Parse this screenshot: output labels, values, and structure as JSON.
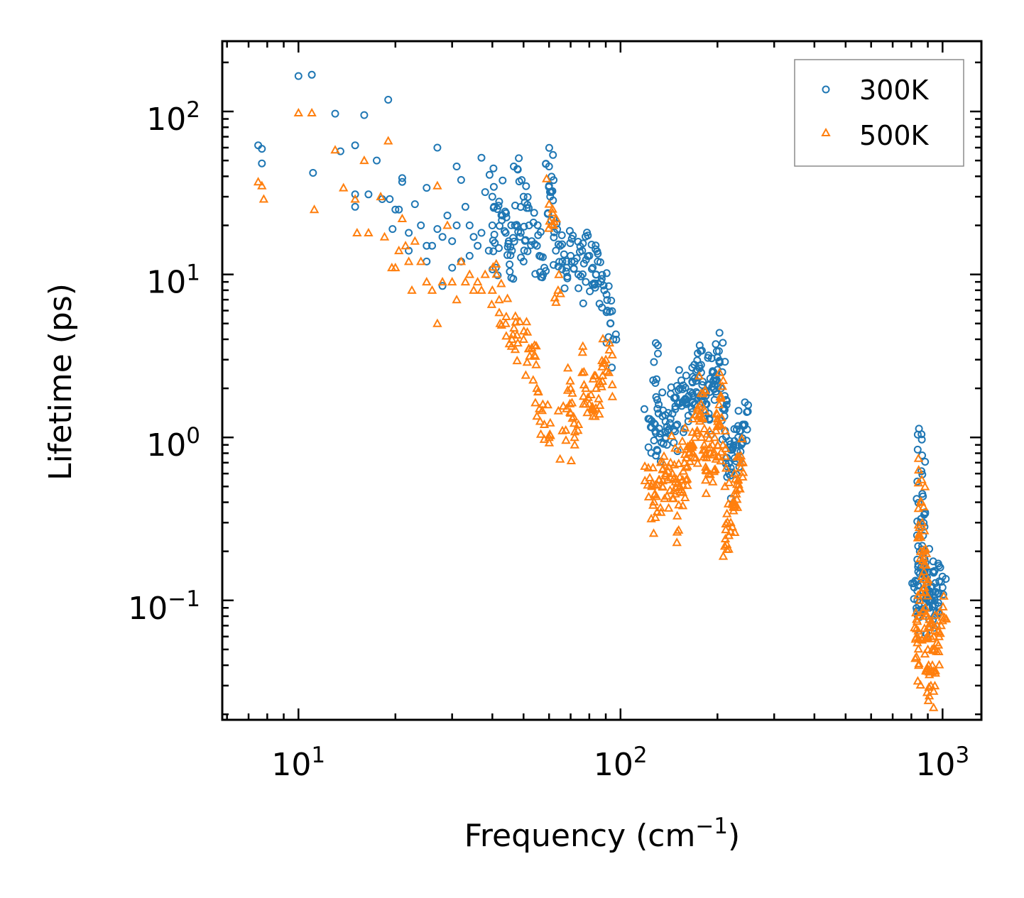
{
  "chart_data": {
    "type": "scatter",
    "xscale": "log",
    "yscale": "log",
    "xlim": [
      5.8,
      1320
    ],
    "ylim": [
      0.0185,
      270
    ],
    "xlabel": {
      "text": "Frequency (cm",
      "sup": "−1",
      "suffix": ")"
    },
    "ylabel": "Lifetime (ps)",
    "x_ticks": [
      {
        "value": 10,
        "base": "10",
        "exp": "1"
      },
      {
        "value": 100,
        "base": "10",
        "exp": "2"
      },
      {
        "value": 1000,
        "base": "10",
        "exp": "3"
      }
    ],
    "y_ticks": [
      {
        "value": 0.1,
        "base": "10",
        "exp": "−1"
      },
      {
        "value": 1,
        "base": "10",
        "exp": "0"
      },
      {
        "value": 10,
        "base": "10",
        "exp": "1"
      },
      {
        "value": 100,
        "base": "10",
        "exp": "2"
      }
    ],
    "legend": {
      "position": "top-right"
    },
    "series": [
      {
        "name": "300K",
        "marker": "circle",
        "color": "#1f77b4",
        "points": [
          [
            7.5,
            62
          ],
          [
            7.7,
            59
          ],
          [
            7.7,
            48
          ],
          [
            10,
            165
          ],
          [
            11,
            168
          ],
          [
            11.1,
            42
          ],
          [
            13,
            97
          ],
          [
            13.5,
            57
          ],
          [
            15,
            62
          ],
          [
            15,
            31
          ],
          [
            15,
            26
          ],
          [
            16,
            95
          ],
          [
            16.5,
            31
          ],
          [
            17.5,
            50
          ],
          [
            18.2,
            29
          ],
          [
            19,
            118
          ],
          [
            19.2,
            29
          ],
          [
            19.6,
            19
          ],
          [
            20,
            25
          ],
          [
            20.5,
            25
          ],
          [
            21,
            37
          ],
          [
            21,
            39
          ],
          [
            22,
            18
          ],
          [
            22,
            14
          ],
          [
            23,
            27
          ],
          [
            24,
            20
          ],
          [
            25,
            12
          ],
          [
            25,
            15
          ],
          [
            25,
            34
          ],
          [
            26,
            15
          ],
          [
            27,
            60
          ],
          [
            27,
            19
          ],
          [
            28,
            8.5
          ],
          [
            28,
            17
          ],
          [
            29,
            23
          ],
          [
            30,
            16
          ],
          [
            30,
            11
          ],
          [
            31,
            46
          ],
          [
            31,
            20
          ],
          [
            32,
            38
          ],
          [
            32,
            12
          ],
          [
            33,
            26
          ],
          [
            34,
            20
          ],
          [
            34,
            13
          ],
          [
            35,
            17
          ],
          [
            36,
            15
          ],
          [
            37,
            52
          ],
          [
            37,
            18
          ],
          [
            38,
            32
          ],
          [
            39,
            14
          ],
          [
            40,
            30
          ],
          [
            40,
            20
          ],
          [
            41,
            11
          ],
          [
            42,
            28
          ],
          [
            43,
            23
          ],
          [
            44,
            18
          ],
          [
            45,
            16
          ],
          [
            46,
            14
          ],
          [
            47,
            20
          ],
          [
            48,
            44
          ],
          [
            49,
            18
          ],
          [
            50,
            30
          ],
          [
            50,
            12
          ],
          [
            52,
            20
          ],
          [
            53,
            16
          ],
          [
            55,
            15
          ],
          [
            56,
            13
          ],
          [
            58,
            11
          ],
          [
            60,
            46
          ],
          [
            60,
            35
          ],
          [
            61,
            32
          ],
          [
            62,
            22
          ],
          [
            63,
            14
          ],
          [
            65,
            15
          ],
          [
            66,
            12
          ],
          [
            68,
            11
          ],
          [
            70,
            13
          ],
          [
            72,
            12
          ],
          [
            74,
            10
          ],
          [
            76,
            14
          ],
          [
            78,
            9
          ],
          [
            80,
            13
          ],
          [
            82,
            11
          ],
          [
            84,
            10
          ],
          [
            85,
            12
          ],
          [
            87,
            9
          ],
          [
            89,
            8
          ],
          [
            91,
            6
          ],
          [
            93,
            5
          ],
          [
            95,
            4
          ],
          [
            127,
            2.9
          ],
          [
            122,
            1.3
          ],
          [
            125,
            1.15
          ],
          [
            128,
            1.2
          ],
          [
            130,
            1.7
          ],
          [
            132,
            1.0
          ],
          [
            135,
            1.35
          ],
          [
            138,
            1.25
          ],
          [
            140,
            1.1
          ],
          [
            143,
            1.3
          ],
          [
            145,
            1.4
          ],
          [
            148,
            1.55
          ],
          [
            150,
            1.2
          ],
          [
            153,
            2.0
          ],
          [
            156,
            1.65
          ],
          [
            158,
            1.7
          ],
          [
            160,
            1.6
          ],
          [
            163,
            1.8
          ],
          [
            165,
            1.9
          ],
          [
            167,
            2.2
          ],
          [
            170,
            2.3
          ],
          [
            173,
            2.6
          ],
          [
            176,
            2.65
          ],
          [
            178,
            2.5
          ],
          [
            180,
            2.2
          ],
          [
            182,
            1.9
          ],
          [
            185,
            1.6
          ],
          [
            188,
            1.4
          ],
          [
            190,
            2.3
          ],
          [
            193,
            2.5
          ],
          [
            196,
            2.3
          ],
          [
            198,
            2.4
          ],
          [
            200,
            2.6
          ],
          [
            203,
            2.95
          ],
          [
            205,
            2.0
          ],
          [
            208,
            1.5
          ],
          [
            211,
            1.1
          ],
          [
            214,
            0.75
          ],
          [
            217,
            0.6
          ],
          [
            220,
            0.65
          ],
          [
            223,
            0.85
          ],
          [
            226,
            0.95
          ],
          [
            229,
            0.9
          ],
          [
            232,
            1.0
          ],
          [
            236,
            1.1
          ],
          [
            240,
            1.2
          ],
          [
            243,
            1.2
          ],
          [
            830,
            0.13
          ],
          [
            835,
            0.1
          ],
          [
            840,
            0.15
          ],
          [
            845,
            0.08
          ],
          [
            850,
            0.2
          ],
          [
            855,
            0.3
          ],
          [
            860,
            0.62
          ],
          [
            862,
            0.97
          ],
          [
            865,
            0.45
          ],
          [
            870,
            0.25
          ],
          [
            875,
            0.2
          ],
          [
            880,
            0.15
          ],
          [
            885,
            0.17
          ],
          [
            890,
            0.13
          ],
          [
            895,
            0.11
          ],
          [
            900,
            0.15
          ],
          [
            905,
            0.1
          ],
          [
            910,
            0.09
          ],
          [
            920,
            0.12
          ],
          [
            930,
            0.1
          ],
          [
            945,
            0.1
          ],
          [
            960,
            0.12
          ],
          [
            975,
            0.11
          ],
          [
            990,
            0.13
          ],
          [
            1000,
            0.12
          ]
        ]
      },
      {
        "name": "500K",
        "marker": "triangle",
        "color": "#ff7f0e",
        "points": [
          [
            7.5,
            37
          ],
          [
            7.7,
            35
          ],
          [
            7.8,
            29
          ],
          [
            10,
            98
          ],
          [
            11,
            98
          ],
          [
            11.2,
            25
          ],
          [
            13,
            58
          ],
          [
            13.8,
            34
          ],
          [
            15,
            29
          ],
          [
            15.2,
            18
          ],
          [
            16,
            50
          ],
          [
            16.5,
            18
          ],
          [
            18,
            30
          ],
          [
            18.5,
            17
          ],
          [
            19,
            66
          ],
          [
            19.5,
            11
          ],
          [
            20,
            11
          ],
          [
            20.5,
            14
          ],
          [
            21,
            22
          ],
          [
            21.5,
            15
          ],
          [
            22,
            12
          ],
          [
            22.5,
            8
          ],
          [
            23,
            16
          ],
          [
            24,
            12
          ],
          [
            25,
            9
          ],
          [
            26,
            8
          ],
          [
            27,
            35
          ],
          [
            27,
            5
          ],
          [
            28,
            9
          ],
          [
            29,
            20
          ],
          [
            30,
            9
          ],
          [
            31,
            7
          ],
          [
            32,
            12
          ],
          [
            33,
            9
          ],
          [
            34,
            10
          ],
          [
            35,
            8
          ],
          [
            36,
            9
          ],
          [
            37,
            8
          ],
          [
            38,
            10
          ],
          [
            40,
            8
          ],
          [
            42,
            7
          ],
          [
            44,
            5
          ],
          [
            46,
            4
          ],
          [
            48,
            3.8
          ],
          [
            50,
            4
          ],
          [
            52,
            3.5
          ],
          [
            54,
            3.2
          ],
          [
            55,
            2
          ],
          [
            56,
            1.5
          ],
          [
            58,
            1.2
          ],
          [
            60,
            1.0
          ],
          [
            60,
            27
          ],
          [
            62,
            20
          ],
          [
            64,
            8
          ],
          [
            66,
            1.1
          ],
          [
            68,
            1.5
          ],
          [
            70,
            2
          ],
          [
            72,
            1
          ],
          [
            74,
            1.2
          ],
          [
            76,
            2.5
          ],
          [
            78,
            2
          ],
          [
            80,
            1.6
          ],
          [
            82,
            1.5
          ],
          [
            84,
            2
          ],
          [
            86,
            2.2
          ],
          [
            88,
            2.4
          ],
          [
            90,
            3
          ],
          [
            92,
            2.5
          ],
          [
            122,
            0.65
          ],
          [
            125,
            0.5
          ],
          [
            128,
            0.45
          ],
          [
            130,
            0.35
          ],
          [
            132,
            0.55
          ],
          [
            135,
            0.5
          ],
          [
            138,
            0.6
          ],
          [
            140,
            0.55
          ],
          [
            143,
            0.7
          ],
          [
            145,
            0.6
          ],
          [
            148,
            0.45
          ],
          [
            150,
            0.33
          ],
          [
            153,
            0.5
          ],
          [
            156,
            0.55
          ],
          [
            158,
            0.7
          ],
          [
            160,
            0.75
          ],
          [
            163,
            0.8
          ],
          [
            165,
            0.85
          ],
          [
            168,
            0.9
          ],
          [
            170,
            1.0
          ],
          [
            173,
            1.1
          ],
          [
            176,
            1.4
          ],
          [
            178,
            1.6
          ],
          [
            180,
            1.3
          ],
          [
            182,
            0.9
          ],
          [
            185,
            0.75
          ],
          [
            188,
            0.6
          ],
          [
            190,
            0.8
          ],
          [
            193,
            0.9
          ],
          [
            196,
            1.0
          ],
          [
            198,
            1.1
          ],
          [
            200,
            1.3
          ],
          [
            203,
            1.2
          ],
          [
            205,
            1.8
          ],
          [
            208,
            0.9
          ],
          [
            211,
            0.5
          ],
          [
            214,
            0.22
          ],
          [
            217,
            0.25
          ],
          [
            220,
            0.3
          ],
          [
            223,
            0.4
          ],
          [
            226,
            0.4
          ],
          [
            229,
            0.45
          ],
          [
            232,
            0.55
          ],
          [
            236,
            0.65
          ],
          [
            240,
            0.7
          ],
          [
            830,
            0.045
          ],
          [
            835,
            0.055
          ],
          [
            840,
            0.065
          ],
          [
            845,
            0.08
          ],
          [
            850,
            0.1
          ],
          [
            855,
            0.2
          ],
          [
            860,
            0.4
          ],
          [
            862,
            0.55
          ],
          [
            865,
            0.3
          ],
          [
            870,
            0.2
          ],
          [
            875,
            0.15
          ],
          [
            880,
            0.12
          ],
          [
            885,
            0.09
          ],
          [
            890,
            0.08
          ],
          [
            895,
            0.06
          ],
          [
            900,
            0.05
          ],
          [
            905,
            0.04
          ],
          [
            910,
            0.035
          ],
          [
            920,
            0.03
          ],
          [
            930,
            0.04
          ],
          [
            945,
            0.05
          ],
          [
            960,
            0.055
          ],
          [
            975,
            0.06
          ],
          [
            990,
            0.07
          ],
          [
            1000,
            0.075
          ]
        ]
      }
    ]
  }
}
